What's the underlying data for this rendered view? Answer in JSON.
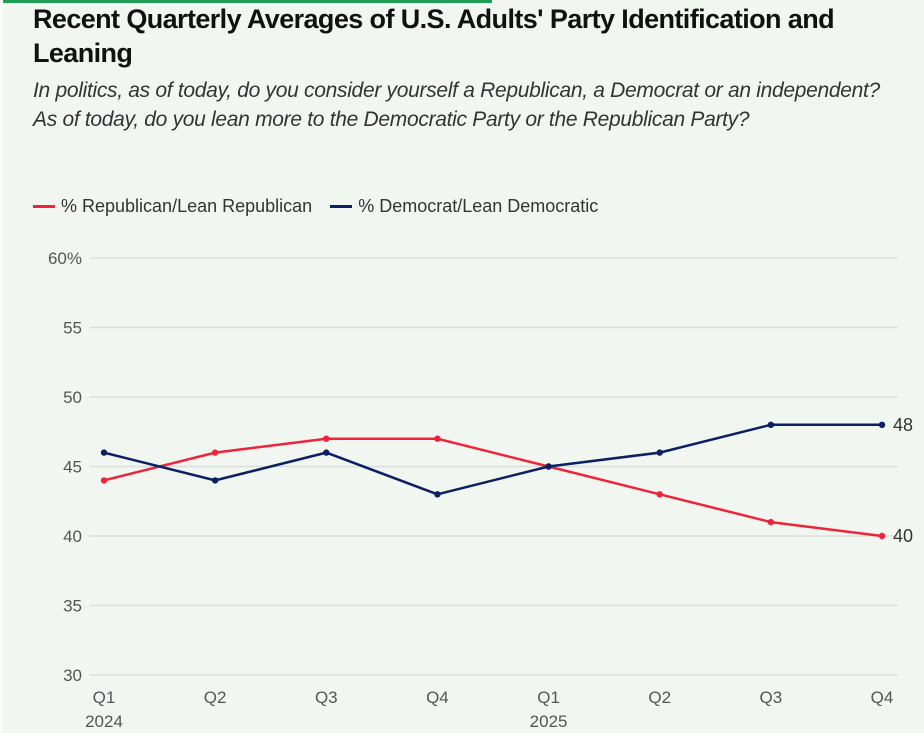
{
  "chart_data": {
    "type": "line",
    "title": "Recent Quarterly Averages of U.S. Adults' Party Identification and Leaning",
    "subtitle": [
      "In politics, as of today, do you consider yourself a Republican, a Democrat or an independent?",
      "As of today, do you lean more to the Democratic Party or the Republican Party?"
    ],
    "categories": [
      "Q1",
      "Q2",
      "Q3",
      "Q4",
      "Q1",
      "Q2",
      "Q3",
      "Q4"
    ],
    "year_labels": [
      {
        "index": 0,
        "label": "2024"
      },
      {
        "index": 4,
        "label": "2025"
      }
    ],
    "series": [
      {
        "name": "% Republican/Lean Republican",
        "color": "#f0233a",
        "values": [
          44,
          46,
          47,
          47,
          45,
          43,
          41,
          40
        ],
        "end_label": "40"
      },
      {
        "name": "% Democrat/Lean Democratic",
        "color": "#0b1f65",
        "values": [
          46,
          44,
          46,
          43,
          45,
          46,
          48,
          48
        ],
        "end_label": "48"
      }
    ],
    "ylim": [
      30,
      60
    ],
    "yticks": [
      30,
      35,
      40,
      45,
      50,
      55,
      60
    ],
    "ytick_labels": [
      "30",
      "35",
      "40",
      "45",
      "50",
      "55",
      "60%"
    ],
    "grid": true,
    "legend_position": "top-left",
    "xlabel": "",
    "ylabel": ""
  }
}
